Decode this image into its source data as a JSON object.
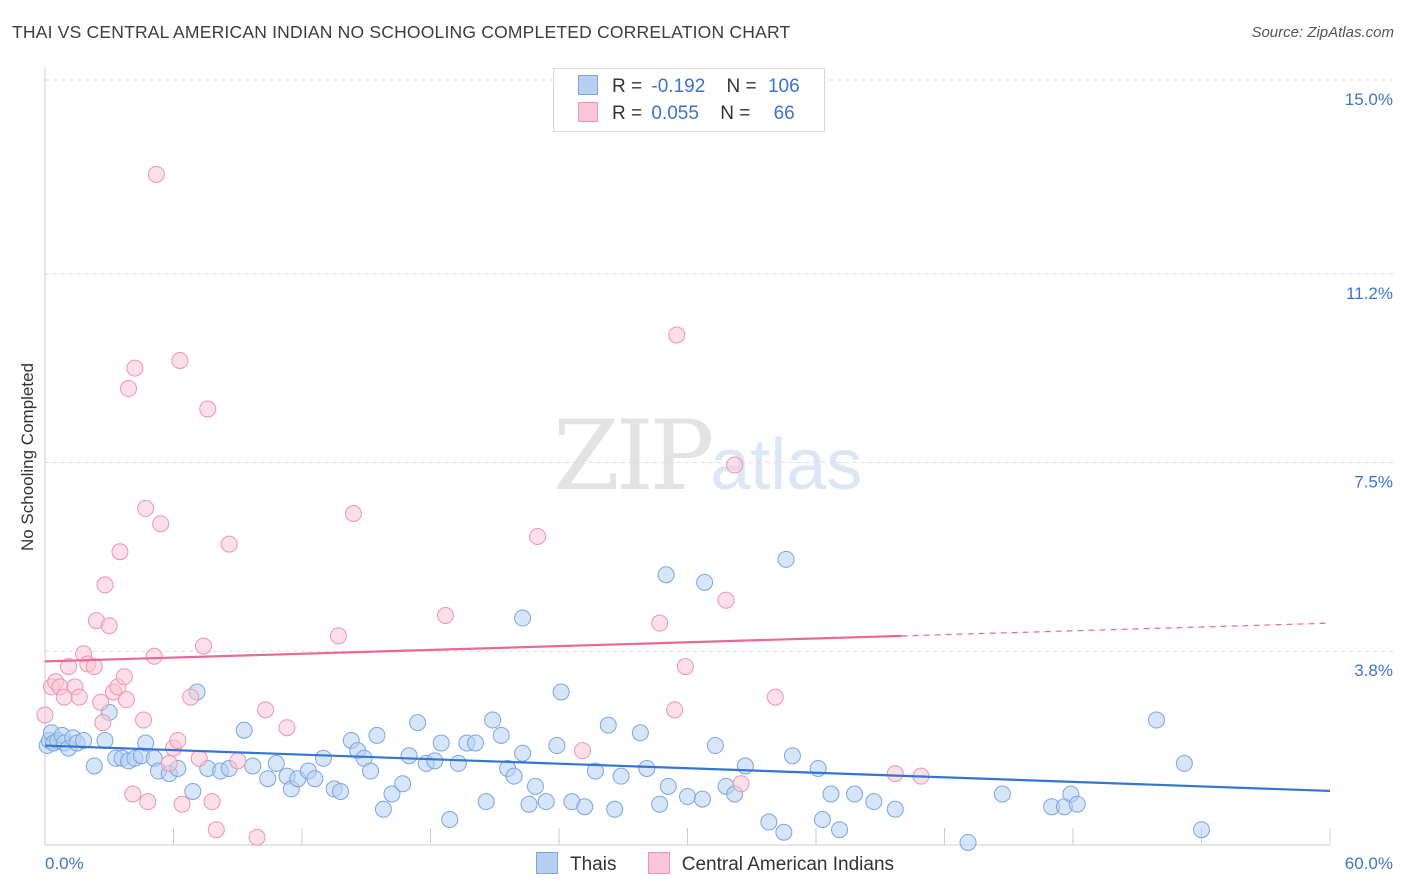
{
  "title": "THAI VS CENTRAL AMERICAN INDIAN NO SCHOOLING COMPLETED CORRELATION CHART",
  "source": "Source: ZipAtlas.com",
  "watermark": {
    "zip": "ZIP",
    "atlas": "atlas"
  },
  "legend_top": {
    "thais": {
      "r_label": "R =",
      "r_value": "-0.192",
      "n_label": "N =",
      "n_value": "106"
    },
    "cai": {
      "r_label": "R =",
      "r_value": "0.055",
      "n_label": "N =",
      "n_value": "66"
    }
  },
  "colors": {
    "thais_fill": "#b7d0f2",
    "thais_stroke": "#7aa6de",
    "thais_line": "#3474d2",
    "cai_fill": "#f8c6d5",
    "cai_stroke": "#ee94b0",
    "cai_line": "#e9689a",
    "tick_label": "#3c74c9",
    "grid": "#dddddd"
  },
  "chart_data": {
    "type": "scatter",
    "title": "THAI VS CENTRAL AMERICAN INDIAN NO SCHOOLING COMPLETED CORRELATION CHART",
    "xlabel": "",
    "ylabel": "No Schooling Completed",
    "xlim": [
      0,
      60
    ],
    "ylim": [
      0,
      15
    ],
    "x_tick_labels": [
      "0.0%",
      "60.0%"
    ],
    "y_ticks": [
      3.8,
      7.5,
      11.2,
      15.0
    ],
    "y_tick_labels": [
      "3.8%",
      "7.5%",
      "11.2%",
      "15.0%"
    ],
    "grid": true,
    "legend_position": "top-center",
    "series": [
      {
        "name": "Thais",
        "r": -0.192,
        "n": 106,
        "trend": {
          "x": [
            0,
            60
          ],
          "y": [
            1.95,
            1.06
          ]
        },
        "points": [
          [
            0.1,
            1.95
          ],
          [
            0.2,
            2.05
          ],
          [
            0.3,
            2.2
          ],
          [
            0.4,
            2.0
          ],
          [
            0.6,
            2.05
          ],
          [
            0.8,
            2.15
          ],
          [
            0.9,
            2.0
          ],
          [
            1.1,
            1.9
          ],
          [
            1.3,
            2.1
          ],
          [
            1.5,
            2.0
          ],
          [
            1.8,
            2.05
          ],
          [
            2.3,
            1.55
          ],
          [
            2.8,
            2.05
          ],
          [
            3.0,
            2.6
          ],
          [
            3.3,
            1.7
          ],
          [
            3.6,
            1.7
          ],
          [
            3.9,
            1.65
          ],
          [
            4.2,
            1.7
          ],
          [
            4.5,
            1.75
          ],
          [
            4.7,
            2.0
          ],
          [
            5.1,
            1.7
          ],
          [
            5.3,
            1.45
          ],
          [
            5.8,
            1.4
          ],
          [
            6.2,
            1.5
          ],
          [
            6.9,
            1.05
          ],
          [
            7.1,
            3.0
          ],
          [
            7.6,
            1.5
          ],
          [
            8.2,
            1.45
          ],
          [
            8.6,
            1.5
          ],
          [
            9.3,
            2.25
          ],
          [
            9.7,
            1.55
          ],
          [
            10.4,
            1.3
          ],
          [
            10.8,
            1.6
          ],
          [
            11.3,
            1.35
          ],
          [
            11.5,
            1.1
          ],
          [
            11.8,
            1.3
          ],
          [
            12.3,
            1.45
          ],
          [
            12.6,
            1.3
          ],
          [
            13.0,
            1.7
          ],
          [
            13.5,
            1.1
          ],
          [
            13.8,
            1.05
          ],
          [
            14.3,
            2.05
          ],
          [
            14.6,
            1.85
          ],
          [
            14.9,
            1.7
          ],
          [
            15.2,
            1.45
          ],
          [
            15.5,
            2.15
          ],
          [
            15.8,
            0.7
          ],
          [
            16.2,
            1.0
          ],
          [
            16.7,
            1.2
          ],
          [
            17.0,
            1.75
          ],
          [
            17.4,
            2.4
          ],
          [
            17.8,
            1.6
          ],
          [
            18.2,
            1.65
          ],
          [
            18.5,
            2.0
          ],
          [
            18.9,
            0.5
          ],
          [
            19.3,
            1.6
          ],
          [
            19.7,
            2.0
          ],
          [
            20.1,
            2.0
          ],
          [
            20.6,
            0.85
          ],
          [
            20.9,
            2.45
          ],
          [
            21.3,
            2.15
          ],
          [
            21.6,
            1.5
          ],
          [
            21.9,
            1.35
          ],
          [
            22.3,
            1.8
          ],
          [
            22.6,
            0.8
          ],
          [
            22.9,
            1.15
          ],
          [
            23.4,
            0.85
          ],
          [
            23.9,
            1.95
          ],
          [
            24.1,
            3.0
          ],
          [
            24.6,
            0.85
          ],
          [
            25.2,
            0.75
          ],
          [
            25.7,
            1.45
          ],
          [
            26.3,
            2.35
          ],
          [
            26.6,
            0.7
          ],
          [
            26.9,
            1.35
          ],
          [
            27.8,
            2.2
          ],
          [
            28.1,
            1.5
          ],
          [
            28.7,
            0.8
          ],
          [
            29.1,
            1.15
          ],
          [
            30.0,
            0.95
          ],
          [
            30.7,
            0.9
          ],
          [
            31.3,
            1.95
          ],
          [
            31.8,
            1.15
          ],
          [
            32.2,
            1.0
          ],
          [
            32.7,
            1.55
          ],
          [
            33.8,
            0.45
          ],
          [
            34.5,
            0.25
          ],
          [
            34.9,
            1.75
          ],
          [
            36.1,
            1.5
          ],
          [
            36.3,
            0.5
          ],
          [
            36.7,
            1.0
          ],
          [
            37.1,
            0.3
          ],
          [
            37.8,
            1.0
          ],
          [
            38.7,
            0.85
          ],
          [
            39.7,
            0.7
          ],
          [
            43.1,
            0.05
          ],
          [
            44.7,
            1.0
          ],
          [
            47.0,
            0.75
          ],
          [
            47.6,
            0.75
          ],
          [
            47.9,
            1.0
          ],
          [
            48.2,
            0.8
          ],
          [
            51.9,
            2.45
          ],
          [
            53.2,
            1.6
          ],
          [
            54.0,
            0.3
          ],
          [
            22.3,
            4.45
          ],
          [
            29.0,
            5.3
          ],
          [
            30.8,
            5.15
          ],
          [
            34.6,
            5.6
          ]
        ]
      },
      {
        "name": "Central American Indians",
        "r": 0.055,
        "n": 66,
        "trend": {
          "x": [
            0,
            40
          ],
          "y": [
            3.6,
            4.1
          ]
        },
        "trend_dashed": {
          "x": [
            40,
            60
          ],
          "y": [
            4.1,
            4.35
          ]
        },
        "points": [
          [
            0.0,
            2.55
          ],
          [
            0.3,
            3.1
          ],
          [
            0.5,
            3.2
          ],
          [
            0.7,
            3.1
          ],
          [
            0.9,
            2.9
          ],
          [
            1.1,
            3.5
          ],
          [
            1.4,
            3.1
          ],
          [
            1.6,
            2.9
          ],
          [
            1.8,
            3.75
          ],
          [
            2.0,
            3.55
          ],
          [
            2.3,
            3.5
          ],
          [
            2.4,
            4.4
          ],
          [
            2.6,
            2.8
          ],
          [
            2.7,
            2.4
          ],
          [
            2.8,
            5.1
          ],
          [
            3.0,
            4.3
          ],
          [
            3.2,
            3.0
          ],
          [
            3.4,
            3.1
          ],
          [
            3.5,
            5.75
          ],
          [
            3.7,
            3.3
          ],
          [
            3.8,
            2.85
          ],
          [
            3.9,
            8.95
          ],
          [
            4.1,
            1.0
          ],
          [
            4.2,
            9.35
          ],
          [
            4.6,
            2.45
          ],
          [
            4.7,
            6.6
          ],
          [
            4.8,
            0.85
          ],
          [
            5.1,
            3.7
          ],
          [
            5.2,
            13.15
          ],
          [
            5.4,
            6.3
          ],
          [
            5.8,
            1.6
          ],
          [
            6.0,
            1.9
          ],
          [
            6.2,
            2.05
          ],
          [
            6.3,
            9.5
          ],
          [
            6.4,
            0.8
          ],
          [
            6.8,
            2.9
          ],
          [
            7.2,
            1.7
          ],
          [
            7.4,
            3.9
          ],
          [
            7.6,
            8.55
          ],
          [
            7.8,
            0.85
          ],
          [
            8.0,
            0.3
          ],
          [
            8.6,
            5.9
          ],
          [
            9.0,
            1.65
          ],
          [
            9.9,
            0.15
          ],
          [
            10.3,
            2.65
          ],
          [
            11.3,
            2.3
          ],
          [
            13.7,
            4.1
          ],
          [
            14.4,
            6.5
          ],
          [
            18.7,
            4.5
          ],
          [
            23.0,
            6.05
          ],
          [
            25.1,
            1.85
          ],
          [
            28.7,
            4.35
          ],
          [
            29.4,
            2.65
          ],
          [
            29.9,
            3.5
          ],
          [
            29.5,
            10.0
          ],
          [
            31.8,
            4.8
          ],
          [
            32.2,
            7.45
          ],
          [
            32.5,
            1.2
          ],
          [
            34.1,
            2.9
          ],
          [
            39.7,
            1.4
          ],
          [
            40.9,
            1.35
          ]
        ]
      }
    ]
  },
  "bottom_legend": {
    "thais": "Thais",
    "cai": "Central American Indians"
  }
}
